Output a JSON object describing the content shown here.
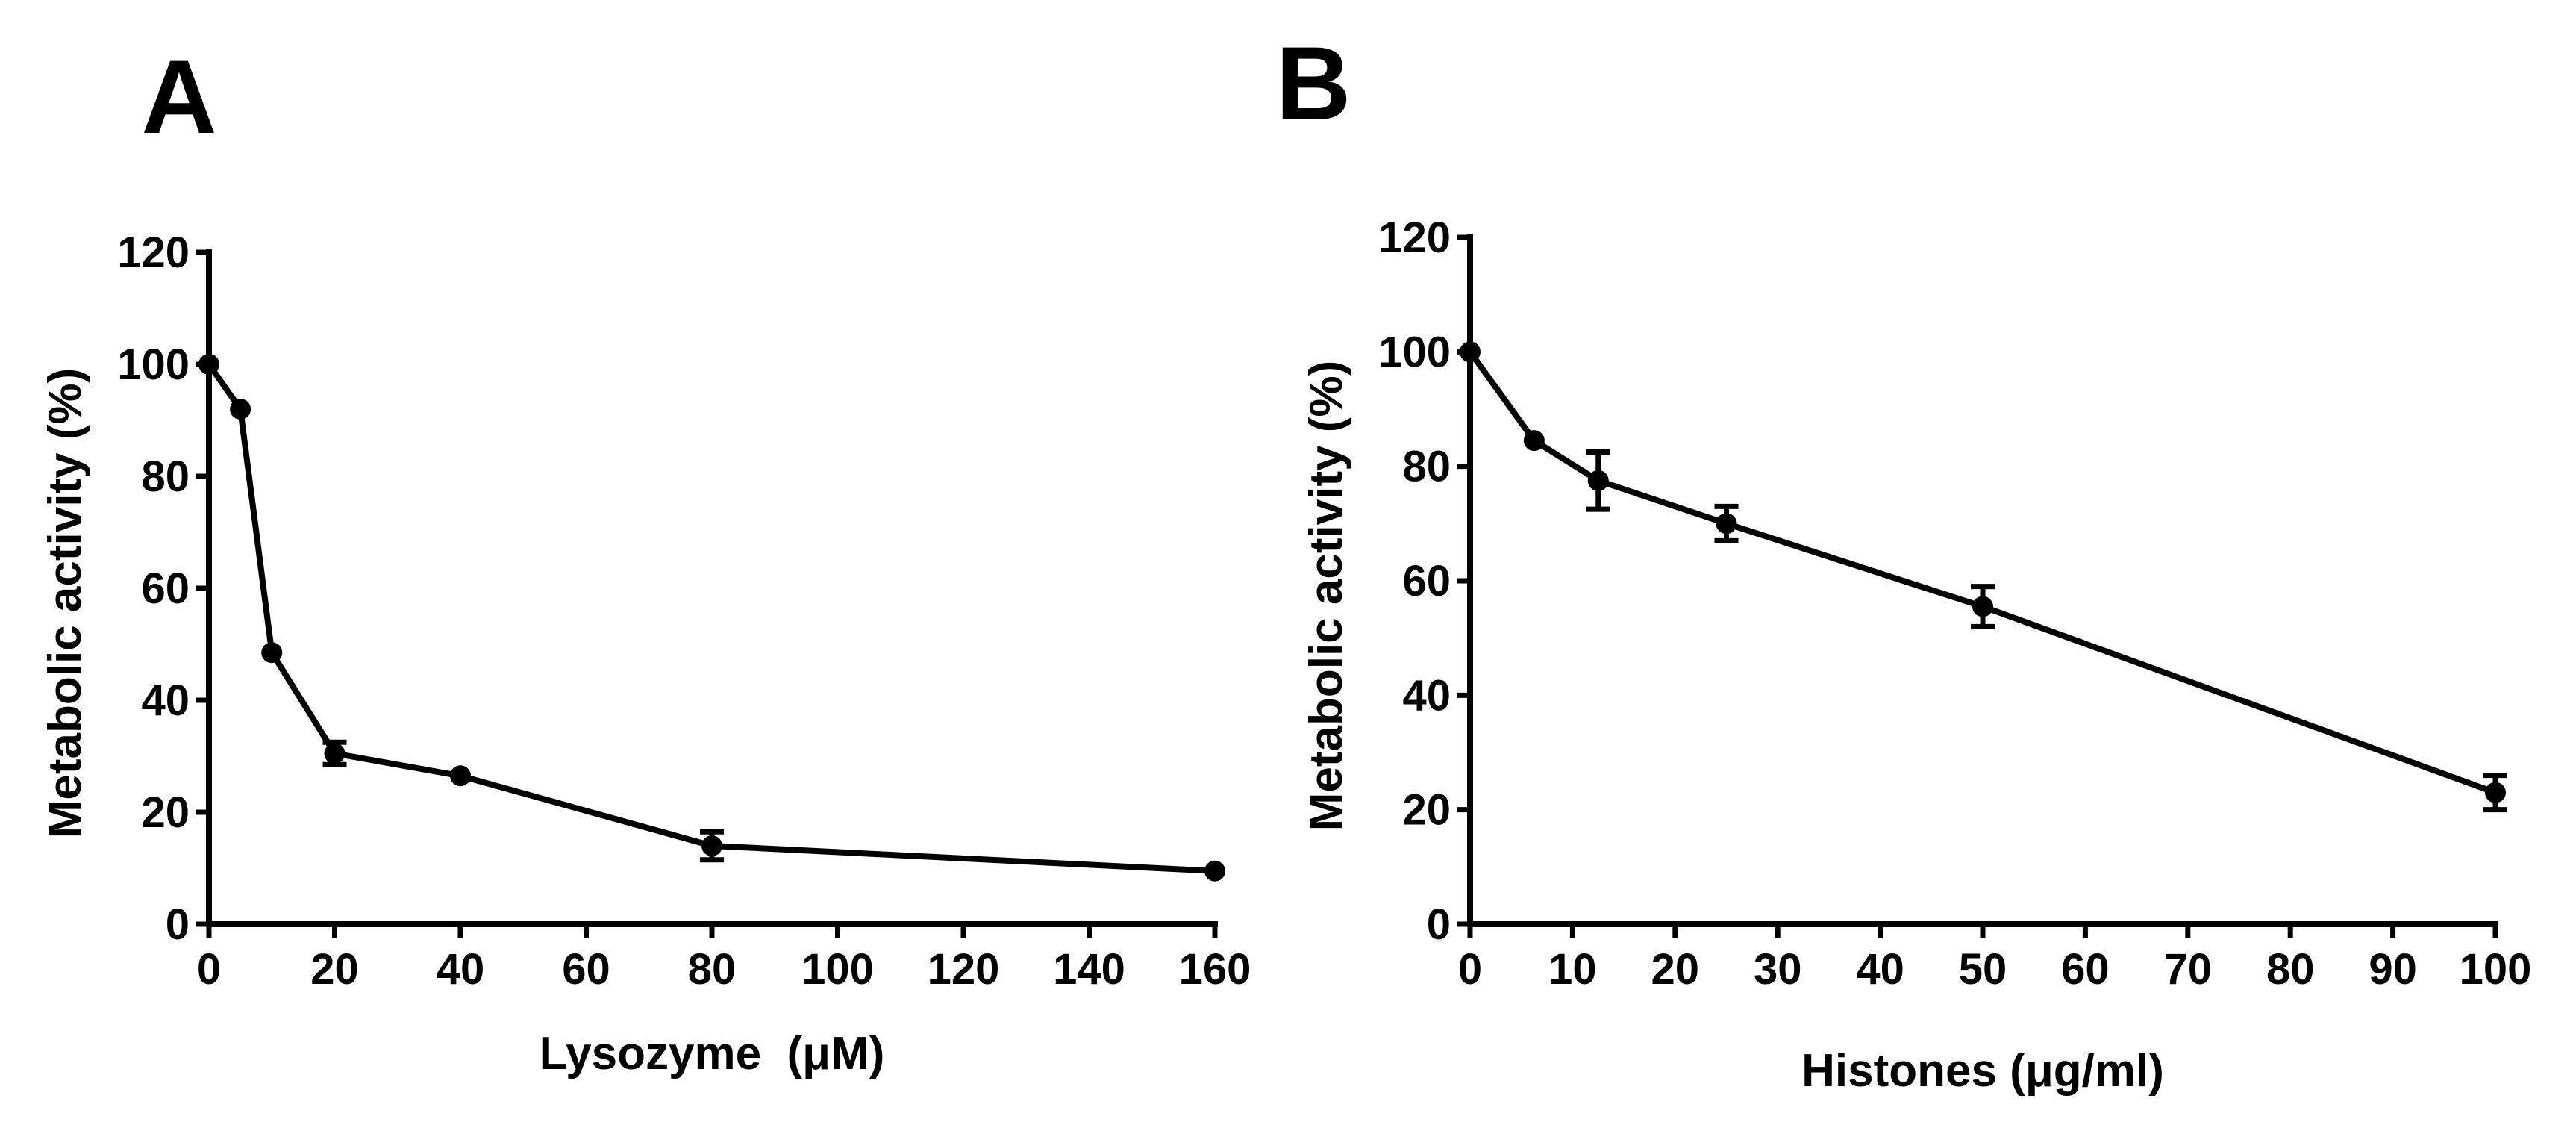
{
  "chart_data": [
    {
      "type": "line",
      "panel_label": "A",
      "title": "",
      "xlabel": "Lysozyme  (μM)",
      "ylabel": "Metabolic activity (%)",
      "xlim": [
        0,
        160
      ],
      "ylim": [
        0,
        120
      ],
      "xticks": [
        0,
        20,
        40,
        60,
        80,
        100,
        120,
        140,
        160
      ],
      "yticks": [
        0,
        20,
        40,
        60,
        80,
        100,
        120
      ],
      "grid": false,
      "series": [
        {
          "name": "Lysozyme",
          "x": [
            0,
            5,
            10,
            20,
            40,
            80,
            160
          ],
          "values": [
            100,
            92,
            48.5,
            30.5,
            26.5,
            14,
            9.5
          ],
          "error": [
            0,
            0,
            0,
            2,
            0,
            2.5,
            0
          ]
        }
      ]
    },
    {
      "type": "line",
      "panel_label": "B",
      "title": "",
      "xlabel": "Histones (μg/ml)",
      "ylabel": "Metabolic activity (%)",
      "xlim": [
        0,
        100
      ],
      "ylim": [
        0,
        120
      ],
      "xticks": [
        0,
        10,
        20,
        30,
        40,
        50,
        60,
        70,
        80,
        90,
        100
      ],
      "yticks": [
        0,
        20,
        40,
        60,
        80,
        100,
        120
      ],
      "grid": false,
      "series": [
        {
          "name": "Histones",
          "x": [
            0,
            6.25,
            12.5,
            25,
            50,
            100
          ],
          "values": [
            100,
            84.5,
            77.5,
            70,
            55.5,
            23
          ],
          "error": [
            0,
            0,
            5,
            3,
            3.5,
            3
          ]
        }
      ]
    }
  ]
}
